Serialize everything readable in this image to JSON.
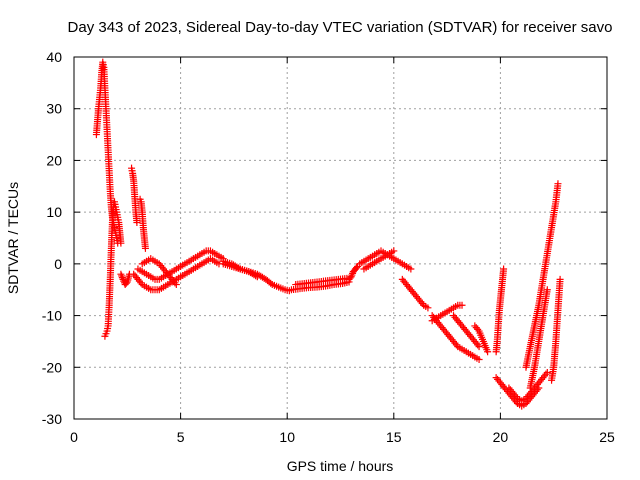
{
  "chart_data": {
    "type": "scatter",
    "title": "Day 343 of 2023, Sidereal Day-to-day VTEC variation (SDTVAR) for receiver savo",
    "xlabel": "GPS time / hours",
    "ylabel": "SDTVAR / TECUs",
    "xlim": [
      0,
      25
    ],
    "ylim": [
      -30,
      40
    ],
    "xticks": [
      0,
      5,
      10,
      15,
      20,
      25
    ],
    "yticks": [
      -30,
      -20,
      -10,
      0,
      10,
      20,
      30,
      40
    ],
    "grid": true,
    "marker": "+",
    "color": "#ff0000",
    "series": [
      {
        "name": "SDTVAR",
        "segments": [
          {
            "x": [
              1.05,
              1.15,
              1.25,
              1.3,
              1.35,
              1.4,
              1.45,
              1.5,
              1.55,
              1.6,
              1.65,
              1.7,
              1.75,
              1.8,
              1.85,
              1.9,
              1.95,
              2.0,
              2.05
            ],
            "y": [
              25,
              30,
              34,
              37,
              39,
              38,
              34,
              30,
              26,
              22,
              18,
              14,
              11,
              9,
              8,
              7,
              6,
              5,
              4
            ]
          },
          {
            "x": [
              1.45,
              1.5,
              1.55,
              1.6,
              1.65,
              1.7,
              1.75,
              1.8,
              1.85,
              1.9,
              1.95,
              2.0,
              2.05,
              2.1,
              2.15,
              2.2
            ],
            "y": [
              -14,
              -13.5,
              -13,
              -12,
              -8,
              -3,
              3,
              8,
              11,
              12,
              11,
              10,
              9,
              8,
              6,
              4
            ]
          },
          {
            "x": [
              2.2,
              2.3,
              2.4,
              2.5,
              2.6
            ],
            "y": [
              -2,
              -3,
              -4,
              -3.5,
              -2
            ]
          },
          {
            "x": [
              2.7,
              2.75,
              2.8,
              2.85,
              2.9,
              2.95
            ],
            "y": [
              18.5,
              17.5,
              16,
              13,
              10,
              8
            ]
          },
          {
            "x": [
              3.1,
              3.15,
              3.2,
              3.25,
              3.3,
              3.35
            ],
            "y": [
              12.5,
              12,
              10,
              7,
              5,
              3
            ]
          },
          {
            "x": [
              2.8,
              3.0,
              3.2,
              3.4,
              3.6,
              3.8,
              4.0,
              4.2,
              4.4,
              4.6,
              4.8,
              5.0,
              5.2,
              5.4,
              5.6,
              5.8,
              6.0,
              6.2,
              6.4,
              6.6,
              6.8
            ],
            "y": [
              -2,
              -3,
              -4,
              -4.5,
              -5,
              -5,
              -5,
              -4.5,
              -4,
              -3.5,
              -3,
              -2.5,
              -2,
              -1.5,
              -1,
              -0.5,
              0,
              0.5,
              1,
              0.5,
              0
            ]
          },
          {
            "x": [
              3.0,
              3.2,
              3.4,
              3.6,
              3.8,
              4.0,
              4.2,
              4.4,
              4.6,
              4.8,
              5.0,
              5.2,
              5.4,
              5.6,
              5.8,
              6.0,
              6.2,
              6.4,
              6.6,
              6.8,
              7.0
            ],
            "y": [
              -1,
              -1.5,
              -2,
              -2.5,
              -3,
              -3,
              -2.5,
              -2,
              -1.5,
              -1,
              -0.5,
              0,
              0.5,
              1,
              1.5,
              2,
              2.5,
              2.5,
              2,
              1.5,
              1
            ]
          },
          {
            "x": [
              3.2,
              3.4,
              3.6,
              3.8,
              4.0,
              4.2,
              4.4,
              4.6,
              4.8
            ],
            "y": [
              0,
              0.5,
              1,
              0.5,
              0,
              -1,
              -2,
              -3,
              -4
            ]
          },
          {
            "x": [
              7.0,
              7.4,
              7.8,
              8.2,
              8.6,
              9.0,
              9.3,
              9.6,
              9.9,
              10.1
            ],
            "y": [
              0.5,
              0,
              -1,
              -1.5,
              -2,
              -3,
              -4,
              -4.5,
              -5,
              -5.2
            ]
          },
          {
            "x": [
              7.0,
              7.4,
              7.8,
              8.2,
              8.6
            ],
            "y": [
              0,
              -0.5,
              -1,
              -1.5,
              -2.5
            ]
          },
          {
            "x": [
              10.2,
              10.6,
              11.0,
              11.4,
              11.8,
              12.2,
              12.6,
              12.9
            ],
            "y": [
              -5,
              -4.8,
              -4.6,
              -4.5,
              -4.3,
              -4,
              -3.8,
              -3.5
            ]
          },
          {
            "x": [
              10.4,
              10.8,
              11.2,
              11.6,
              12.0,
              12.4,
              12.8
            ],
            "y": [
              -4,
              -3.8,
              -3.6,
              -3.4,
              -3.2,
              -3.0,
              -2.8
            ]
          },
          {
            "x": [
              12.9,
              13.0,
              13.1,
              13.2,
              13.3
            ],
            "y": [
              -3,
              -2.5,
              -1.5,
              -1,
              -0.5
            ]
          },
          {
            "x": [
              13.4,
              13.6,
              13.8,
              14.0,
              14.2,
              14.4,
              14.6,
              14.8,
              15.0,
              15.2,
              15.4,
              15.6,
              15.8
            ],
            "y": [
              0,
              0.5,
              1,
              1.5,
              2,
              2.5,
              2,
              1.5,
              1,
              0.5,
              0,
              -0.5,
              -1
            ]
          },
          {
            "x": [
              13.6,
              13.8,
              14.0,
              14.2,
              14.4,
              14.6,
              14.8,
              15.0
            ],
            "y": [
              -1,
              -0.5,
              0,
              0.5,
              1,
              1.5,
              2,
              2.5
            ]
          },
          {
            "x": [
              15.4,
              15.6,
              15.8,
              16.0,
              16.2,
              16.4,
              16.6
            ],
            "y": [
              -3,
              -4,
              -5,
              -6,
              -7,
              -8,
              -8.5
            ]
          },
          {
            "x": [
              16.8,
              17.0,
              17.2,
              17.4,
              17.6,
              17.8,
              18.0,
              18.2,
              18.4,
              18.6,
              18.8,
              19.0
            ],
            "y": [
              -10,
              -11,
              -12,
              -13,
              -14,
              -15,
              -16,
              -16.5,
              -17,
              -17.5,
              -18,
              -18.5
            ]
          },
          {
            "x": [
              16.8,
              17.0,
              17.2,
              17.4,
              17.6,
              17.8,
              18.0,
              18.2
            ],
            "y": [
              -11,
              -10.5,
              -10,
              -9.5,
              -9,
              -8.5,
              -8,
              -8
            ]
          },
          {
            "x": [
              17.8,
              18.0,
              18.2,
              18.4,
              18.6,
              18.8,
              19.0
            ],
            "y": [
              -10,
              -11,
              -12,
              -13,
              -14,
              -15,
              -16
            ]
          },
          {
            "x": [
              18.8,
              19.0,
              19.2,
              19.4
            ],
            "y": [
              -12,
              -13,
              -15,
              -17
            ]
          },
          {
            "x": [
              19.8,
              19.85,
              19.9,
              19.95,
              20.0,
              20.05,
              20.1,
              20.15
            ],
            "y": [
              -17,
              -15,
              -12,
              -9,
              -7,
              -5,
              -3,
              -1
            ]
          },
          {
            "x": [
              19.8,
              20.0,
              20.2,
              20.4,
              20.6,
              20.8,
              21.0,
              21.2,
              21.4,
              21.6,
              21.8
            ],
            "y": [
              -22,
              -23,
              -24,
              -25,
              -26,
              -27,
              -27.5,
              -27,
              -26,
              -25,
              -24
            ]
          },
          {
            "x": [
              20.4,
              20.6,
              20.8,
              21.0,
              21.2,
              21.4,
              21.6,
              21.8,
              22.0,
              22.2
            ],
            "y": [
              -24,
              -25,
              -26,
              -26.5,
              -26,
              -25,
              -24,
              -23,
              -22,
              -21
            ]
          },
          {
            "x": [
              21.2,
              21.4,
              21.6,
              21.8,
              22.0,
              22.2,
              22.4,
              22.6,
              22.7
            ],
            "y": [
              -20,
              -16,
              -12,
              -8,
              -3,
              2,
              7,
              12,
              15.5
            ]
          },
          {
            "x": [
              21.4,
              21.6,
              21.8,
              22.0,
              22.2
            ],
            "y": [
              -24,
              -20,
              -15,
              -10,
              -5
            ]
          },
          {
            "x": [
              22.4,
              22.5,
              22.6,
              22.7,
              22.8
            ],
            "y": [
              -22.5,
              -20,
              -15,
              -9,
              -3
            ]
          }
        ]
      }
    ]
  }
}
